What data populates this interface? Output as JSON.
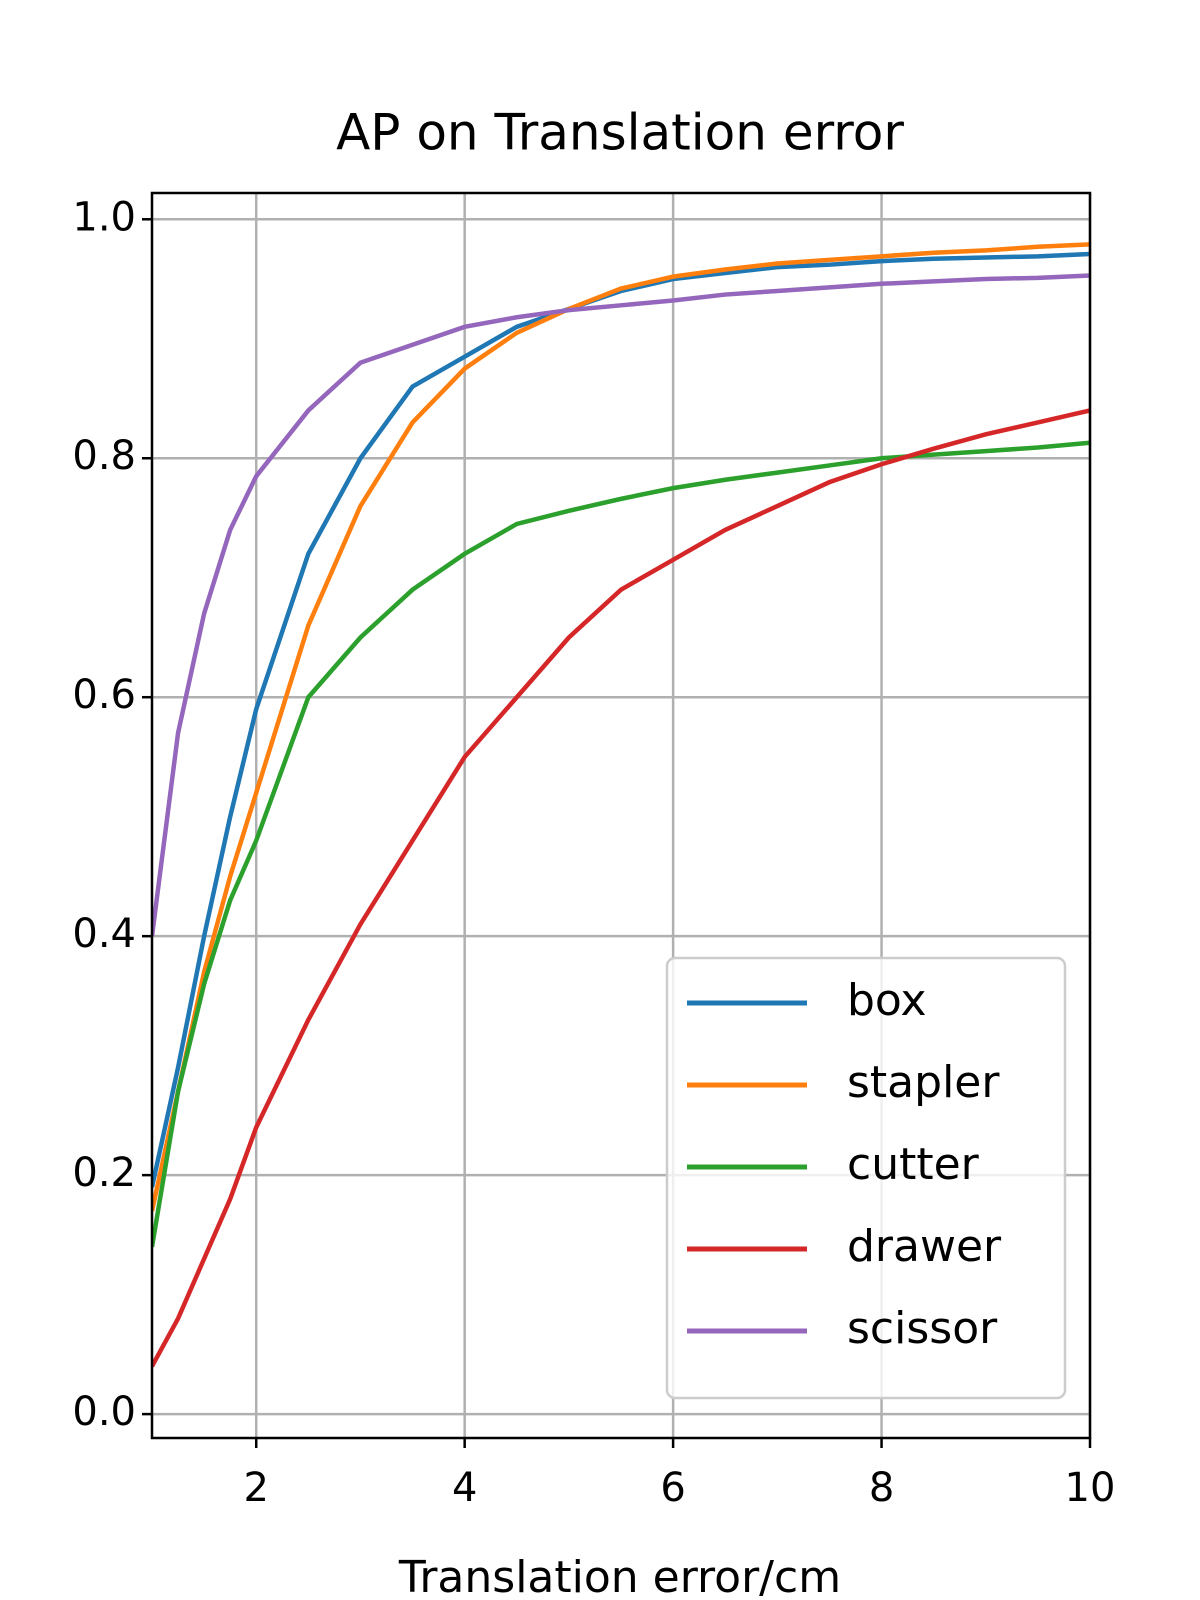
{
  "chart_data": {
    "type": "line",
    "title": "AP on Translation error",
    "x_label": "Translation error/cm",
    "x": [
      1,
      1.25,
      1.5,
      1.75,
      2,
      2.5,
      3,
      3.5,
      4,
      4.5,
      5,
      5.5,
      6,
      6.5,
      7,
      7.5,
      8,
      8.5,
      9,
      9.5,
      10
    ],
    "series": [
      {
        "name": "box",
        "color": "#1f77b4",
        "values": [
          0.19,
          0.29,
          0.4,
          0.5,
          0.59,
          0.72,
          0.8,
          0.86,
          0.885,
          0.91,
          0.925,
          0.94,
          0.95,
          0.955,
          0.96,
          0.962,
          0.965,
          0.967,
          0.968,
          0.969,
          0.971
        ]
      },
      {
        "name": "stapler",
        "color": "#ff7f0e",
        "values": [
          0.17,
          0.27,
          0.37,
          0.45,
          0.52,
          0.66,
          0.76,
          0.83,
          0.875,
          0.905,
          0.925,
          0.942,
          0.952,
          0.958,
          0.963,
          0.966,
          0.969,
          0.972,
          0.974,
          0.977,
          0.979
        ]
      },
      {
        "name": "cutter",
        "color": "#2ca02c",
        "values": [
          0.14,
          0.27,
          0.36,
          0.43,
          0.48,
          0.6,
          0.65,
          0.69,
          0.72,
          0.745,
          0.756,
          0.766,
          0.775,
          0.782,
          0.788,
          0.794,
          0.8,
          0.803,
          0.806,
          0.809,
          0.813
        ]
      },
      {
        "name": "drawer",
        "color": "#d62728",
        "values": [
          0.04,
          0.08,
          0.13,
          0.18,
          0.24,
          0.33,
          0.41,
          0.48,
          0.55,
          0.6,
          0.65,
          0.69,
          0.715,
          0.74,
          0.76,
          0.78,
          0.795,
          0.808,
          0.82,
          0.83,
          0.84
        ]
      },
      {
        "name": "scissor",
        "color": "#9467bd",
        "values": [
          0.4,
          0.57,
          0.67,
          0.74,
          0.785,
          0.84,
          0.88,
          0.895,
          0.91,
          0.918,
          0.924,
          0.928,
          0.932,
          0.937,
          0.94,
          0.943,
          0.946,
          0.948,
          0.95,
          0.951,
          0.953
        ]
      }
    ],
    "xlim": [
      1,
      10
    ],
    "xticks": [
      2,
      4,
      6,
      8,
      10
    ],
    "ylim": [
      -0.02,
      1.022
    ],
    "yticks": [
      {
        "value": 0,
        "label": "0.0"
      },
      0.2,
      0.4,
      0.6,
      0.8,
      {
        "value": 1,
        "label": "1.0"
      }
    ],
    "grid": true,
    "legend": "lower right"
  }
}
